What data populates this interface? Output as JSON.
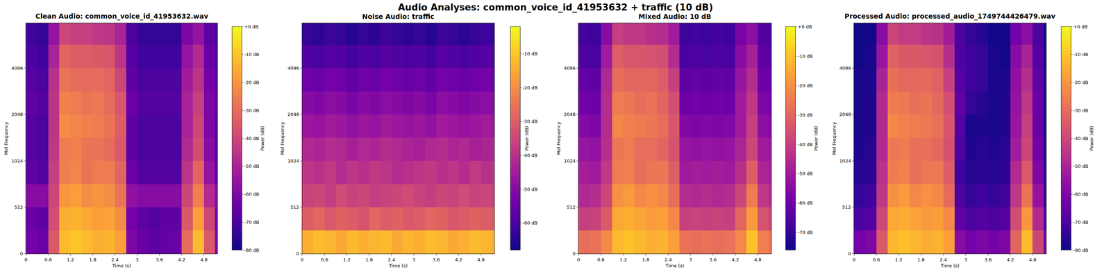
{
  "title": "Audio Analyses: common_voice_id_41953632 + traffic (10 dB)",
  "chart_data": [
    {
      "type": "heatmap",
      "title": "Clean Audio: common_voice_id_41953632.wav",
      "xlabel": "Time (s)",
      "ylabel": "Mel Frequency",
      "x": [
        0.15,
        0.45,
        0.75,
        1.05,
        1.35,
        1.65,
        1.95,
        2.25,
        2.55,
        2.85,
        3.15,
        3.45,
        3.75,
        4.05,
        4.35,
        4.65,
        4.95,
        5.25
      ],
      "y": [
        128,
        384,
        609,
        861,
        1218,
        1722,
        2435,
        3444,
        4871,
        6889
      ],
      "cells": [
        [
          -62,
          -64,
          -35,
          -12,
          -10,
          -12,
          -15,
          -14,
          -18,
          -60,
          -64,
          -66,
          -65,
          -64,
          -30,
          -12,
          -35,
          -60
        ],
        [
          -64,
          -66,
          -38,
          -15,
          -14,
          -16,
          -18,
          -17,
          -22,
          -62,
          -66,
          -68,
          -66,
          -66,
          -35,
          -18,
          -40,
          -62
        ],
        [
          -58,
          -58,
          -40,
          -20,
          -18,
          -22,
          -20,
          -22,
          -28,
          -56,
          -58,
          -58,
          -58,
          -58,
          -40,
          -25,
          -48,
          -58
        ],
        [
          -66,
          -68,
          -42,
          -25,
          -24,
          -28,
          -26,
          -26,
          -32,
          -64,
          -68,
          -68,
          -68,
          -68,
          -45,
          -32,
          -55,
          -66
        ],
        [
          -68,
          -70,
          -44,
          -26,
          -25,
          -28,
          -28,
          -30,
          -35,
          -66,
          -70,
          -70,
          -70,
          -70,
          -48,
          -38,
          -58,
          -68
        ],
        [
          -68,
          -70,
          -45,
          -22,
          -24,
          -25,
          -26,
          -28,
          -34,
          -66,
          -70,
          -70,
          -70,
          -70,
          -50,
          -40,
          -60,
          -68
        ],
        [
          -66,
          -68,
          -45,
          -25,
          -26,
          -28,
          -27,
          -30,
          -36,
          -64,
          -68,
          -68,
          -68,
          -68,
          -50,
          -42,
          -60,
          -66
        ],
        [
          -68,
          -70,
          -46,
          -28,
          -30,
          -30,
          -30,
          -32,
          -40,
          -66,
          -70,
          -70,
          -70,
          -70,
          -52,
          -45,
          -62,
          -68
        ],
        [
          -70,
          -72,
          -50,
          -32,
          -34,
          -34,
          -35,
          -36,
          -45,
          -68,
          -72,
          -72,
          -72,
          -72,
          -55,
          -48,
          -64,
          -70
        ],
        [
          -72,
          -74,
          -55,
          -40,
          -42,
          -42,
          -44,
          -45,
          -50,
          -70,
          -74,
          -74,
          -74,
          -74,
          -60,
          -55,
          -66,
          -72
        ]
      ],
      "xlim": [
        0,
        5.16
      ],
      "xticks": [
        0,
        0.6,
        1.2,
        1.8,
        2.4,
        3,
        3.6,
        4.2,
        4.8
      ],
      "ylim": [
        0,
        8000
      ],
      "yticks": [
        0,
        512,
        1024,
        2048,
        4096
      ],
      "colorbar": {
        "label": "Power (dB)",
        "range": [
          -80,
          0
        ],
        "ticks": [
          {
            "value": 0,
            "label": "+0 dB"
          },
          {
            "value": -10,
            "label": "-10 dB"
          },
          {
            "value": -20,
            "label": "-20 dB"
          },
          {
            "value": -30,
            "label": "-30 dB"
          },
          {
            "value": -40,
            "label": "-40 dB"
          },
          {
            "value": -50,
            "label": "-50 dB"
          },
          {
            "value": -60,
            "label": "-60 dB"
          },
          {
            "value": -70,
            "label": "-70 dB"
          },
          {
            "value": -80,
            "label": "-80 dB"
          }
        ]
      }
    },
    {
      "type": "heatmap",
      "title": "Noise Audio: traffic",
      "xlabel": "Time (s)",
      "ylabel": "Mel Frequency",
      "x": [
        0.15,
        0.45,
        0.75,
        1.05,
        1.35,
        1.65,
        1.95,
        2.25,
        2.55,
        2.85,
        3.15,
        3.45,
        3.75,
        4.05,
        4.35,
        4.65,
        4.95,
        5.25
      ],
      "y": [
        128,
        384,
        609,
        861,
        1218,
        1722,
        2435,
        3444,
        4871,
        6889
      ],
      "cells": [
        [
          -14,
          -12,
          -13,
          -15,
          -12,
          -14,
          -13,
          -12,
          -15,
          -13,
          -14,
          -12,
          -13,
          -15,
          -14,
          -12,
          -13,
          -14
        ],
        [
          -30,
          -28,
          -31,
          -29,
          -30,
          -32,
          -28,
          -30,
          -29,
          -31,
          -30,
          -28,
          -29,
          -31,
          -30,
          -29,
          -30,
          -31
        ],
        [
          -36,
          -35,
          -37,
          -34,
          -36,
          -35,
          -37,
          -36,
          -35,
          -34,
          -36,
          -37,
          -35,
          -36,
          -34,
          -36,
          -35,
          -37
        ],
        [
          -39,
          -40,
          -38,
          -41,
          -39,
          -40,
          -38,
          -39,
          -41,
          -40,
          -39,
          -38,
          -40,
          -39,
          -41,
          -38,
          -40,
          -39
        ],
        [
          -42,
          -43,
          -41,
          -42,
          -44,
          -42,
          -43,
          -41,
          -42,
          -43,
          -44,
          -42,
          -41,
          -43,
          -42,
          -44,
          -43,
          -42
        ],
        [
          -46,
          -47,
          -45,
          -46,
          -48,
          -46,
          -47,
          -45,
          -46,
          -47,
          -46,
          -48,
          -45,
          -46,
          -47,
          -46,
          -45,
          -47
        ],
        [
          -50,
          -51,
          -49,
          -50,
          -52,
          -50,
          -51,
          -49,
          -50,
          -51,
          -50,
          -52,
          -49,
          -50,
          -51,
          -50,
          -49,
          -51
        ],
        [
          -54,
          -55,
          -53,
          -54,
          -56,
          -54,
          -55,
          -53,
          -54,
          -55,
          -54,
          -56,
          -53,
          -54,
          -55,
          -54,
          -53,
          -55
        ],
        [
          -59,
          -60,
          -58,
          -59,
          -61,
          -59,
          -60,
          -58,
          -59,
          -60,
          -59,
          -61,
          -58,
          -59,
          -60,
          -59,
          -58,
          -60
        ],
        [
          -63,
          -64,
          -62,
          -63,
          -65,
          -63,
          -64,
          -62,
          -63,
          -64,
          -63,
          -65,
          -62,
          -63,
          -64,
          -63,
          -62,
          -64
        ]
      ],
      "xlim": [
        0,
        5.16
      ],
      "xticks": [
        0,
        0.6,
        1.2,
        1.8,
        2.4,
        3,
        3.6,
        4.2,
        4.8
      ],
      "ylim": [
        0,
        8000
      ],
      "yticks": [
        0,
        512,
        1024,
        2048,
        4096
      ],
      "colorbar": {
        "label": "Power (dB)",
        "range": [
          -68,
          -2
        ],
        "ticks": [
          {
            "value": -10,
            "label": "-10 dB"
          },
          {
            "value": -20,
            "label": "-20 dB"
          },
          {
            "value": -30,
            "label": "-30 dB"
          },
          {
            "value": -40,
            "label": "-40 dB"
          },
          {
            "value": -50,
            "label": "-50 dB"
          },
          {
            "value": -60,
            "label": "-60 dB"
          }
        ]
      }
    },
    {
      "type": "heatmap",
      "title": "Mixed Audio: 10 dB",
      "xlabel": "Time (s)",
      "ylabel": "Mel Frequency",
      "x": [
        0.15,
        0.45,
        0.75,
        1.05,
        1.35,
        1.65,
        1.95,
        2.25,
        2.55,
        2.85,
        3.15,
        3.45,
        3.75,
        4.05,
        4.35,
        4.65,
        4.95,
        5.25
      ],
      "y": [
        128,
        384,
        609,
        861,
        1218,
        1722,
        2435,
        3444,
        4871,
        6889
      ],
      "cells": [
        [
          -28,
          -27,
          -22,
          -12,
          -10,
          -12,
          -14,
          -13,
          -17,
          -27,
          -28,
          -27,
          -28,
          -27,
          -22,
          -10,
          -24,
          -28
        ],
        [
          -40,
          -39,
          -33,
          -15,
          -14,
          -16,
          -18,
          -17,
          -22,
          -40,
          -39,
          -40,
          -39,
          -40,
          -30,
          -18,
          -35,
          -40
        ],
        [
          -46,
          -45,
          -38,
          -20,
          -18,
          -22,
          -20,
          -22,
          -28,
          -45,
          -46,
          -45,
          -46,
          -45,
          -38,
          -25,
          -42,
          -46
        ],
        [
          -49,
          -50,
          -42,
          -25,
          -24,
          -28,
          -26,
          -26,
          -32,
          -50,
          -49,
          -50,
          -49,
          -50,
          -44,
          -32,
          -47,
          -49
        ],
        [
          -52,
          -53,
          -44,
          -26,
          -25,
          -28,
          -28,
          -30,
          -35,
          -52,
          -53,
          -52,
          -53,
          -52,
          -47,
          -38,
          -50,
          -52
        ],
        [
          -56,
          -57,
          -45,
          -22,
          -24,
          -25,
          -26,
          -28,
          -34,
          -56,
          -57,
          -56,
          -57,
          -56,
          -50,
          -40,
          -54,
          -56
        ],
        [
          -59,
          -60,
          -45,
          -25,
          -26,
          -28,
          -27,
          -30,
          -36,
          -60,
          -59,
          -60,
          -59,
          -60,
          -50,
          -42,
          -57,
          -59
        ],
        [
          -62,
          -63,
          -46,
          -28,
          -30,
          -30,
          -30,
          -32,
          -40,
          -63,
          -62,
          -63,
          -62,
          -63,
          -52,
          -45,
          -60,
          -62
        ],
        [
          -66,
          -67,
          -50,
          -32,
          -34,
          -34,
          -35,
          -36,
          -45,
          -67,
          -66,
          -67,
          -66,
          -67,
          -55,
          -48,
          -63,
          -66
        ],
        [
          -68,
          -69,
          -55,
          -40,
          -42,
          -42,
          -44,
          -45,
          -50,
          -69,
          -68,
          -69,
          -68,
          -69,
          -58,
          -54,
          -65,
          -68
        ]
      ],
      "xlim": [
        0,
        5.16
      ],
      "xticks": [
        0,
        0.6,
        1.2,
        1.8,
        2.4,
        3,
        3.6,
        4.2,
        4.8
      ],
      "ylim": [
        0,
        8000
      ],
      "yticks": [
        0,
        512,
        1024,
        2048,
        4096
      ],
      "colorbar": {
        "label": "Power (dB)",
        "range": [
          -76,
          0
        ],
        "ticks": [
          {
            "value": 0,
            "label": "+0 dB"
          },
          {
            "value": -10,
            "label": "-10 dB"
          },
          {
            "value": -20,
            "label": "-20 dB"
          },
          {
            "value": -30,
            "label": "-30 dB"
          },
          {
            "value": -40,
            "label": "-40 dB"
          },
          {
            "value": -50,
            "label": "-50 dB"
          },
          {
            "value": -60,
            "label": "-60 dB"
          },
          {
            "value": -70,
            "label": "-70 dB"
          }
        ]
      }
    },
    {
      "type": "heatmap",
      "title": "Processed Audio: processed_audio_1749744426479.wav",
      "xlabel": "Time (s)",
      "ylabel": "Mel Frequency",
      "x": [
        0.15,
        0.45,
        0.75,
        1.05,
        1.35,
        1.65,
        1.95,
        2.25,
        2.55,
        2.85,
        3.15,
        3.45,
        3.75,
        4.05,
        4.35,
        4.65,
        4.95,
        5.25
      ],
      "y": [
        128,
        384,
        609,
        861,
        1218,
        1722,
        2435,
        3444,
        4871,
        6889
      ],
      "cells": [
        [
          -62,
          -60,
          -35,
          -13,
          -11,
          -13,
          -15,
          -14,
          -18,
          -58,
          -62,
          -60,
          -62,
          -60,
          -32,
          -12,
          -40,
          -62
        ],
        [
          -70,
          -68,
          -40,
          -16,
          -15,
          -17,
          -19,
          -18,
          -23,
          -66,
          -70,
          -68,
          -70,
          -68,
          -38,
          -20,
          -48,
          -70
        ],
        [
          -74,
          -72,
          -44,
          -21,
          -19,
          -23,
          -21,
          -23,
          -30,
          -70,
          -74,
          -72,
          -74,
          -72,
          -44,
          -28,
          -55,
          -74
        ],
        [
          -76,
          -75,
          -46,
          -26,
          -25,
          -29,
          -27,
          -27,
          -34,
          -72,
          -76,
          -75,
          -76,
          -75,
          -48,
          -35,
          -60,
          -76
        ],
        [
          -77,
          -76,
          -48,
          -27,
          -26,
          -29,
          -29,
          -31,
          -37,
          -70,
          -77,
          -76,
          -77,
          -76,
          -52,
          -40,
          -62,
          -77
        ],
        [
          -78,
          -77,
          -48,
          -23,
          -25,
          -26,
          -27,
          -29,
          -36,
          -68,
          -78,
          -77,
          -78,
          -77,
          -54,
          -42,
          -64,
          -78
        ],
        [
          -78,
          -77,
          -48,
          -26,
          -27,
          -29,
          -28,
          -31,
          -38,
          -66,
          -74,
          -76,
          -78,
          -77,
          -55,
          -44,
          -64,
          -78
        ],
        [
          -78,
          -78,
          -50,
          -29,
          -31,
          -31,
          -31,
          -33,
          -42,
          -68,
          -72,
          -74,
          -78,
          -78,
          -56,
          -47,
          -66,
          -78
        ],
        [
          -79,
          -78,
          -54,
          -33,
          -35,
          -35,
          -36,
          -37,
          -47,
          -70,
          -72,
          -74,
          -78,
          -79,
          -58,
          -50,
          -68,
          -79
        ],
        [
          -79,
          -79,
          -58,
          -41,
          -43,
          -43,
          -45,
          -46,
          -52,
          -70,
          -74,
          -76,
          -79,
          -79,
          -62,
          -57,
          -70,
          -79
        ]
      ],
      "xlim": [
        0,
        5.16
      ],
      "xticks": [
        0,
        0.6,
        1.2,
        1.8,
        2.4,
        3,
        3.6,
        4.2,
        4.8
      ],
      "ylim": [
        0,
        8000
      ],
      "yticks": [
        0,
        512,
        1024,
        2048,
        4096
      ],
      "colorbar": {
        "label": "Power (dB)",
        "range": [
          -80,
          0
        ],
        "ticks": [
          {
            "value": 0,
            "label": "+0 dB"
          },
          {
            "value": -10,
            "label": "-10 dB"
          },
          {
            "value": -20,
            "label": "-20 dB"
          },
          {
            "value": -30,
            "label": "-30 dB"
          },
          {
            "value": -40,
            "label": "-40 dB"
          },
          {
            "value": -50,
            "label": "-50 dB"
          },
          {
            "value": -60,
            "label": "-60 dB"
          },
          {
            "value": -70,
            "label": "-70 dB"
          },
          {
            "value": -80,
            "label": "-80 dB"
          }
        ]
      }
    }
  ]
}
